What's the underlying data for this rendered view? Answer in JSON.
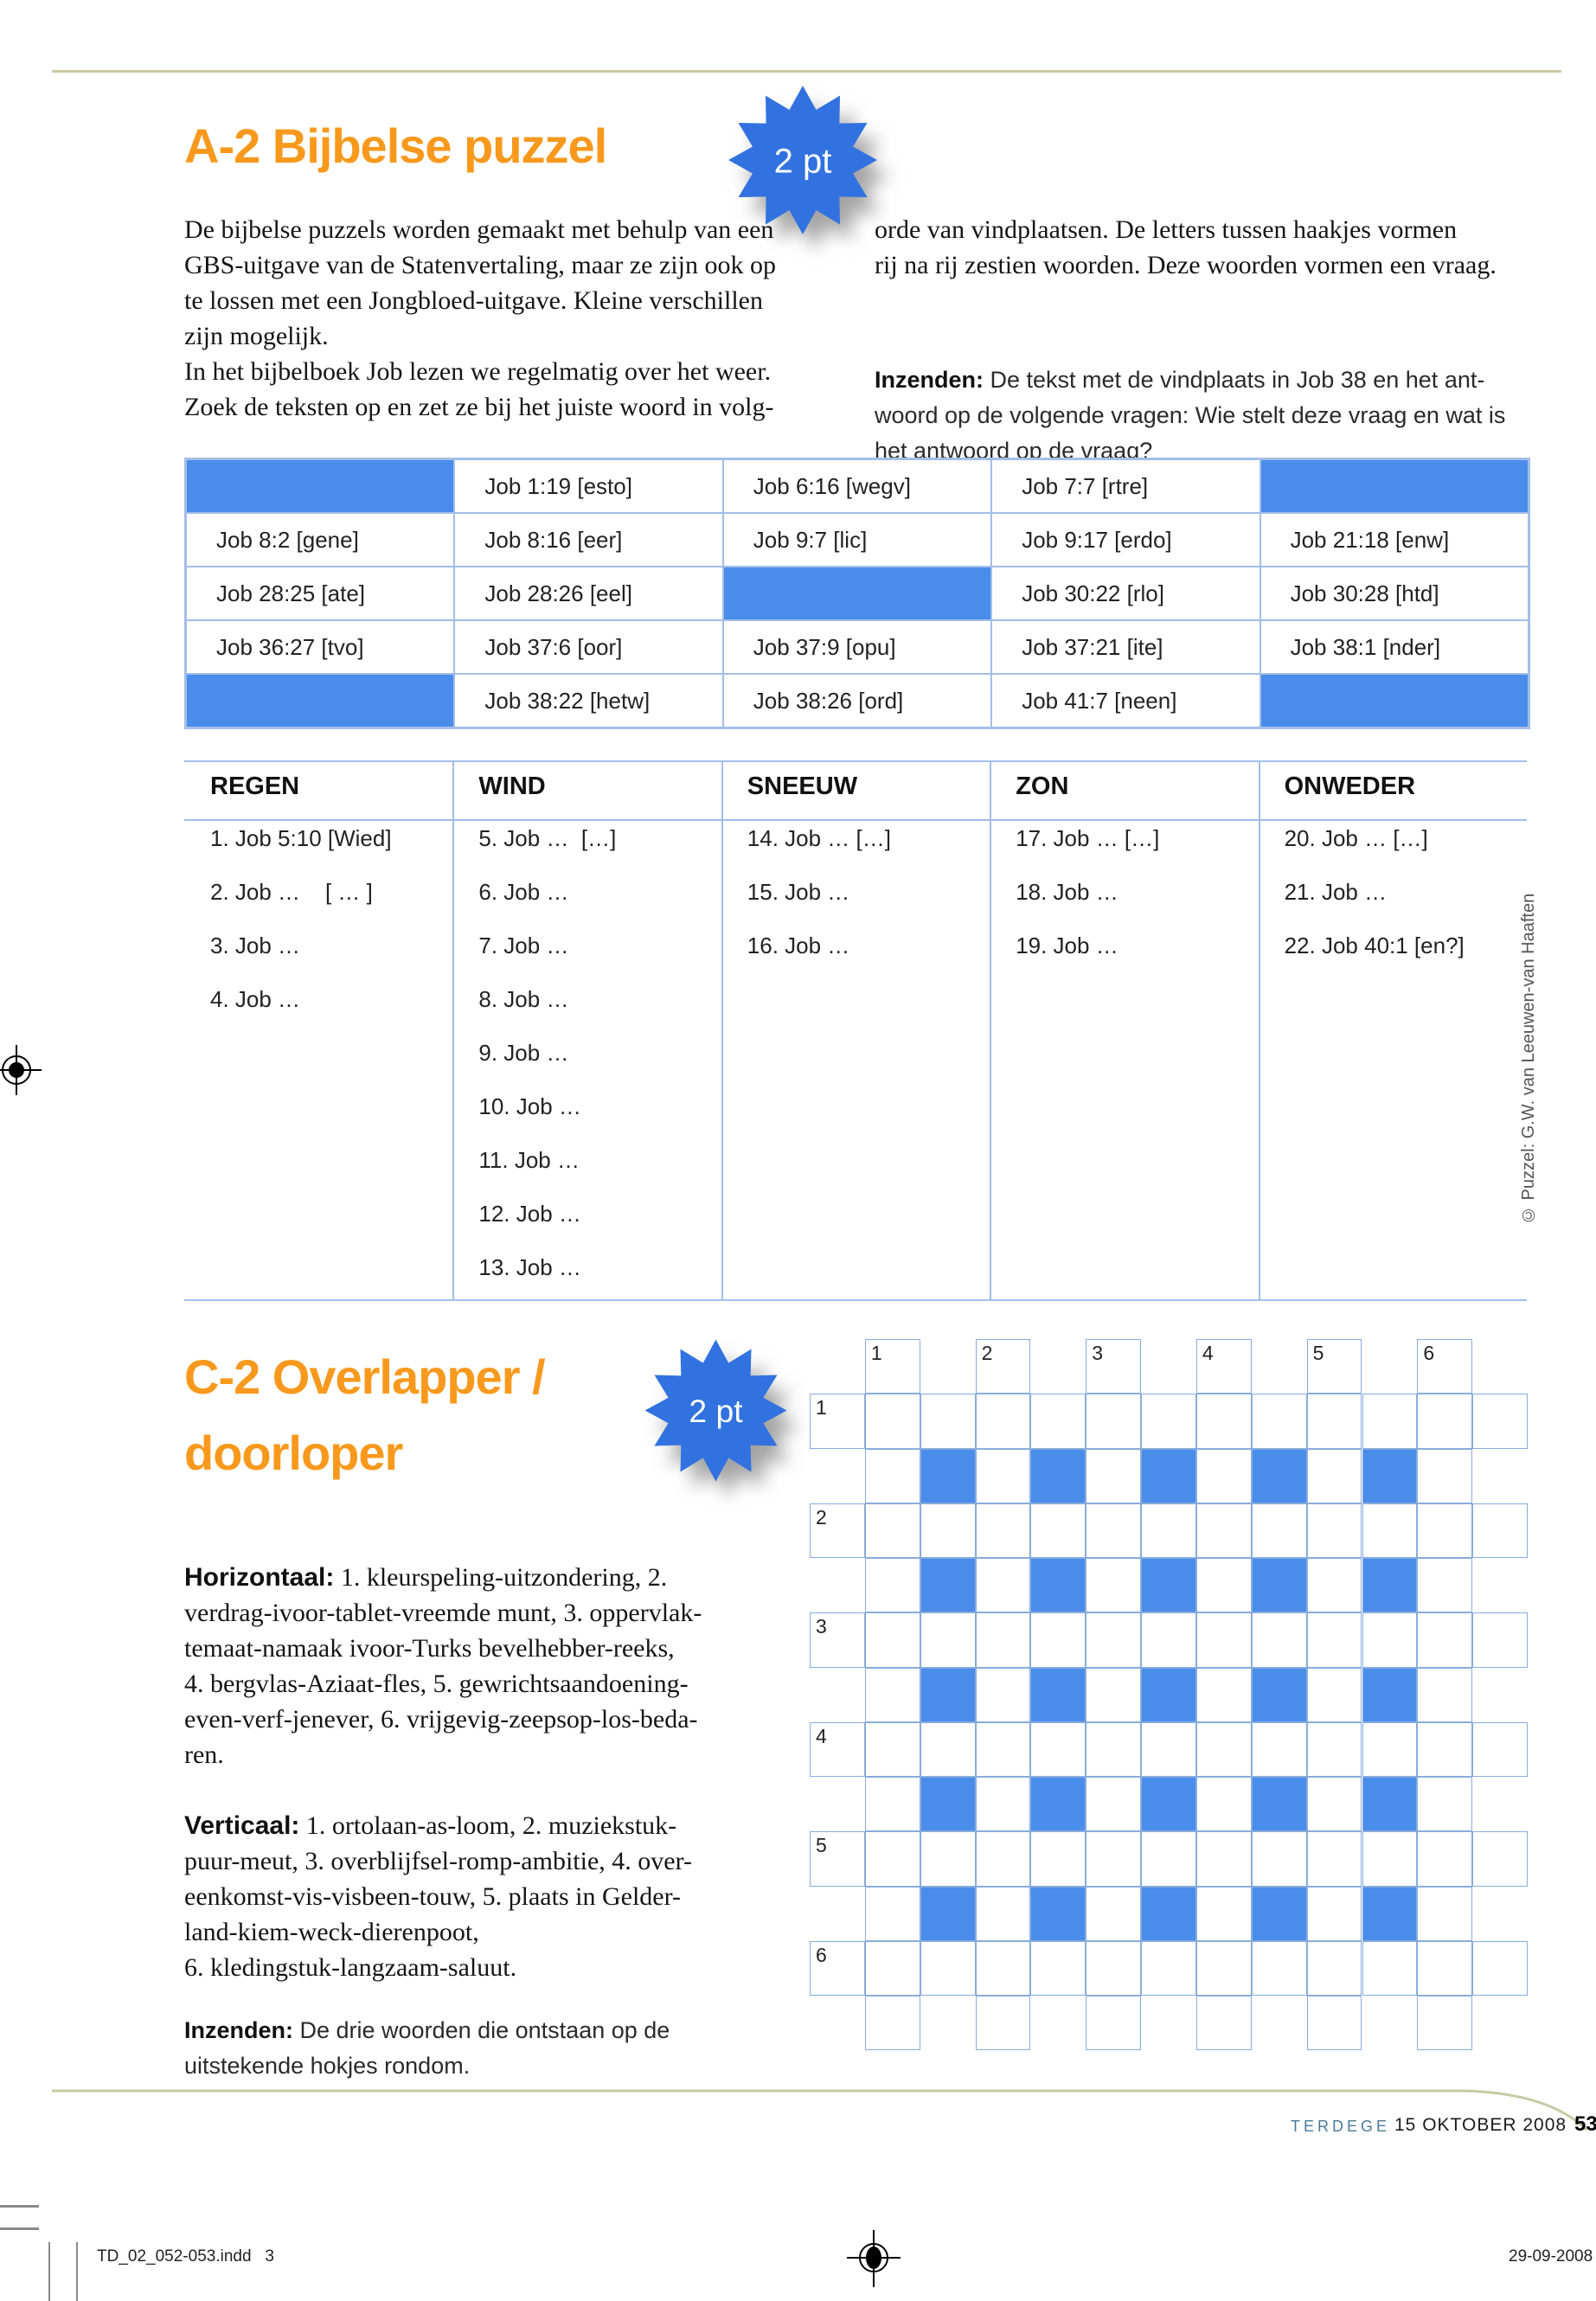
{
  "colors": {
    "accent_orange": "#f8991d",
    "star_blue": "#3172e0",
    "cell_blue": "#4a8cea",
    "table_border_blue": "#a3bee8",
    "grid_border_blue": "#88acdb",
    "rule_tan": "#c9c9a4",
    "magazine_blue": "#4a7a9b"
  },
  "puzzle_a2": {
    "title": "A-2 Bijbelse puzzel",
    "points_badge": "2 pt",
    "intro_left": "De bijbelse puzzels worden gemaakt met behulp van een\nGBS-uitgave van de Statenvertaling, maar ze zijn ook op\nte lossen met een Jongbloed-uitgave. Kleine verschillen\nzijn mogelijk.\nIn het bijbelboek Job lezen we regelmatig over het weer.\nZoek de teksten op en zet ze bij het juiste woord in volg-",
    "intro_right": "orde van vindplaatsen. De letters tussen haakjes vormen\nrij na rij zestien woorden. Deze woorden vormen een vraag.",
    "inzenden_label": "Inzenden:",
    "inzenden_text": " De tekst met de vindplaats in Job 38 en het ant-\nwoord op de volgende vragen: Wie stelt deze vraag en wat is\nhet antwoord op de vraag?",
    "job_table": {
      "rows": [
        [
          null,
          "Job 1:19 [esto]",
          "Job 6:16 [wegv]",
          "Job 7:7 [rtre]",
          null
        ],
        [
          "Job 8:2 [gene]",
          "Job 8:16 [eer]",
          "Job 9:7 [lic]",
          "Job 9:17 [erdo]",
          "Job 21:18 [enw]"
        ],
        [
          "Job 28:25 [ate]",
          "Job 28:26 [eel]",
          null,
          "Job 30:22 [rlo]",
          "Job 30:28 [htd]"
        ],
        [
          "Job 36:27 [tvo]",
          "Job 37:6 [oor]",
          "Job 37:9 [opu]",
          "Job 37:21 [ite]",
          "Job 38:1 [nder]"
        ],
        [
          null,
          "Job 38:22 [hetw]",
          "Job 38:26 [ord]",
          "Job 41:7 [neen]",
          null
        ]
      ]
    },
    "word_table": {
      "columns": [
        {
          "header": "REGEN",
          "items": [
            "1. Job 5:10 [Wied]",
            "2. Job …    [ … ]",
            "3. Job …",
            "4. Job …"
          ]
        },
        {
          "header": "WIND",
          "items": [
            "5. Job …  […]",
            "6. Job …",
            "7. Job …",
            "8. Job …",
            "9. Job …",
            "10. Job …",
            "11. Job …",
            "12. Job …",
            "13. Job …"
          ]
        },
        {
          "header": "SNEEUW",
          "items": [
            "14. Job … […]",
            "15. Job …",
            "16. Job …"
          ]
        },
        {
          "header": "ZON",
          "items": [
            "17. Job … […]",
            "18. Job …",
            "19. Job …"
          ]
        },
        {
          "header": "ONWEDER",
          "items": [
            "20. Job … […]",
            "21. Job …",
            "22. Job 40:1 [en?]"
          ]
        }
      ]
    },
    "credit": "© Puzzel: G.W. van Leeuwen-van Haaften"
  },
  "puzzle_c2": {
    "title_line1": "C-2 Overlapper /",
    "title_line2": "doorloper",
    "points_badge": "2 pt",
    "horizontaal_label": "Horizontaal:",
    "horizontaal_text": " 1. kleurspeling-uitzondering, 2.\nverdrag-ivoor-tablet-vreemde munt, 3. oppervlak-\ntemaat-namaak ivoor-Turks bevelhebber-reeks,\n4. bergvlas-Aziaat-fles, 5. gewrichtsaandoening-\neven-verf-jenever, 6. vrijgevig-zeepsop-los-beda-\nren.",
    "verticaal_label": "Verticaal:",
    "verticaal_text": " 1. ortolaan-as-loom, 2. muziekstuk-\npuur-meut, 3. overblijfsel-romp-ambitie, 4. over-\neenkomst-vis-visbeen-touw, 5. plaats in Gelder-\nland-kiem-weck-dierenpoot,\n6. kledingstuk-langzaam-saluut.",
    "inzenden_label": "Inzenden:",
    "inzenden_text": " De drie woorden die ontstaan op de\nuitstekende hokjes rondom.",
    "crossword": {
      "col_numbers": [
        "1",
        "2",
        "3",
        "4",
        "5",
        "6"
      ],
      "row_numbers": [
        "1",
        "2",
        "3",
        "4",
        "5",
        "6"
      ]
    }
  },
  "footer": {
    "magazine": "TERDEGE",
    "date": "15 OKTOBER 2008",
    "page_number": "53"
  },
  "print_marks": {
    "file_label": "TD_02_052-053.indd   3",
    "print_date": "29-09-2008"
  }
}
